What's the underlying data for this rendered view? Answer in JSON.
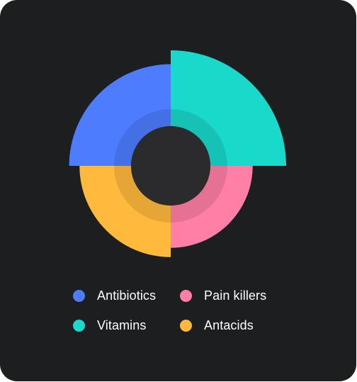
{
  "chart_data": {
    "type": "pie",
    "style": "variable-radius donut (nightingale)",
    "categories": [
      "Antibiotics",
      "Pain killers",
      "Vitamins",
      "Antacids"
    ],
    "series": [
      {
        "label": "Antibiotics",
        "color": "#4d7cfe",
        "angle_start_deg": 270,
        "angle_span_deg": 90,
        "relative_radius": 0.88
      },
      {
        "label": "Vitamins",
        "color": "#19d9ca",
        "angle_start_deg": 0,
        "angle_span_deg": 90,
        "relative_radius": 1.0
      },
      {
        "label": "Pain killers",
        "color": "#ff7fa6",
        "angle_start_deg": 90,
        "angle_span_deg": 90,
        "relative_radius": 0.71
      },
      {
        "label": "Antacids",
        "color": "#ffb93d",
        "angle_start_deg": 180,
        "angle_span_deg": 90,
        "relative_radius": 0.79
      }
    ],
    "legend_position": "bottom",
    "center_color": "#2b2b2d",
    "background": "#1d1e20"
  },
  "legend": {
    "items": [
      {
        "label": "Antibiotics",
        "color": "#4d7cfe"
      },
      {
        "label": "Pain killers",
        "color": "#ff7fa6"
      },
      {
        "label": "Vitamins",
        "color": "#19d9ca"
      },
      {
        "label": "Antacids",
        "color": "#ffb93d"
      }
    ]
  }
}
